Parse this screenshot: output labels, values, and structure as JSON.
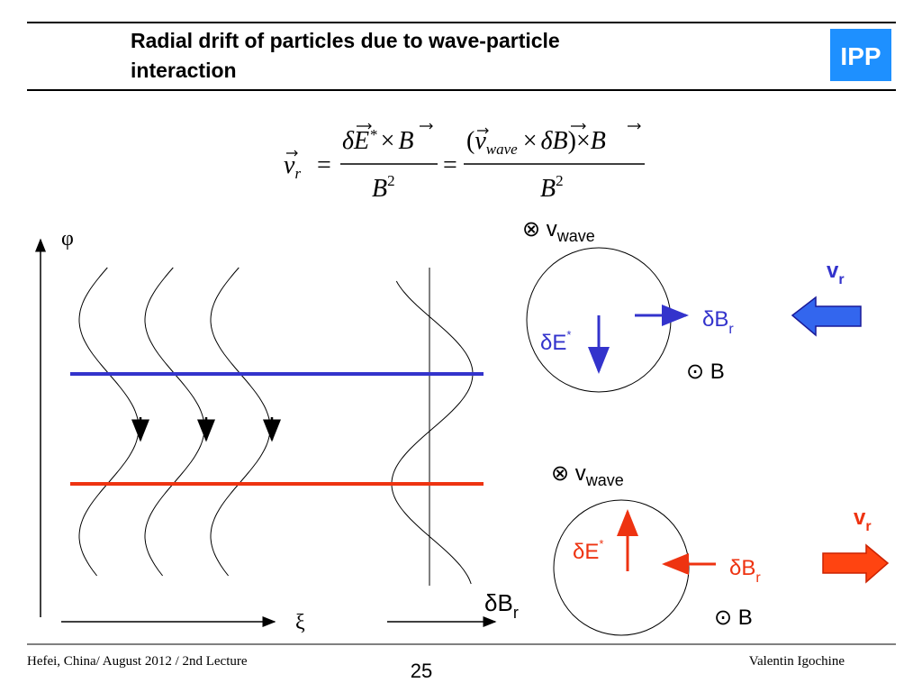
{
  "header": {
    "title_line1": "Radial drift of particles due to wave-particle",
    "title_line2": "interaction",
    "logo": "IPP"
  },
  "equation": {
    "lhs": {
      "base": "v",
      "sub": "r"
    },
    "equals": "=",
    "frac1": {
      "num": [
        "δE",
        "*",
        "×",
        "B"
      ],
      "den": [
        "B",
        "2"
      ]
    },
    "frac2": {
      "num": [
        "(",
        "v",
        "wave",
        "×",
        "δB",
        ")",
        "×",
        "B"
      ],
      "den": [
        "B",
        "2"
      ]
    }
  },
  "diagram": {
    "phi_axis": "φ",
    "xi_axis": "ξ",
    "db_axis": {
      "base": "δB",
      "sub": "r"
    }
  },
  "panels": [
    {
      "v_wave": {
        "base": "⊗ v",
        "sub": "wave"
      },
      "delta_e": {
        "base": "δE",
        "sup": "*"
      },
      "delta_b": {
        "base": "δB",
        "sub": "r"
      },
      "b_field": "⊙ B",
      "v_r": {
        "base": "v",
        "sub": "r"
      }
    },
    {
      "v_wave": {
        "base": "⊗ v",
        "sub": "wave"
      },
      "delta_e": {
        "base": "δE",
        "sup": "*"
      },
      "delta_b": {
        "base": "δB",
        "sub": "r"
      },
      "b_field": "⊙ B",
      "v_r": {
        "base": "v",
        "sub": "r"
      }
    }
  ],
  "footer": {
    "left": "Hefei, China/ August 2012 / 2nd Lecture",
    "page": "25",
    "right": "Valentin Igochine"
  }
}
